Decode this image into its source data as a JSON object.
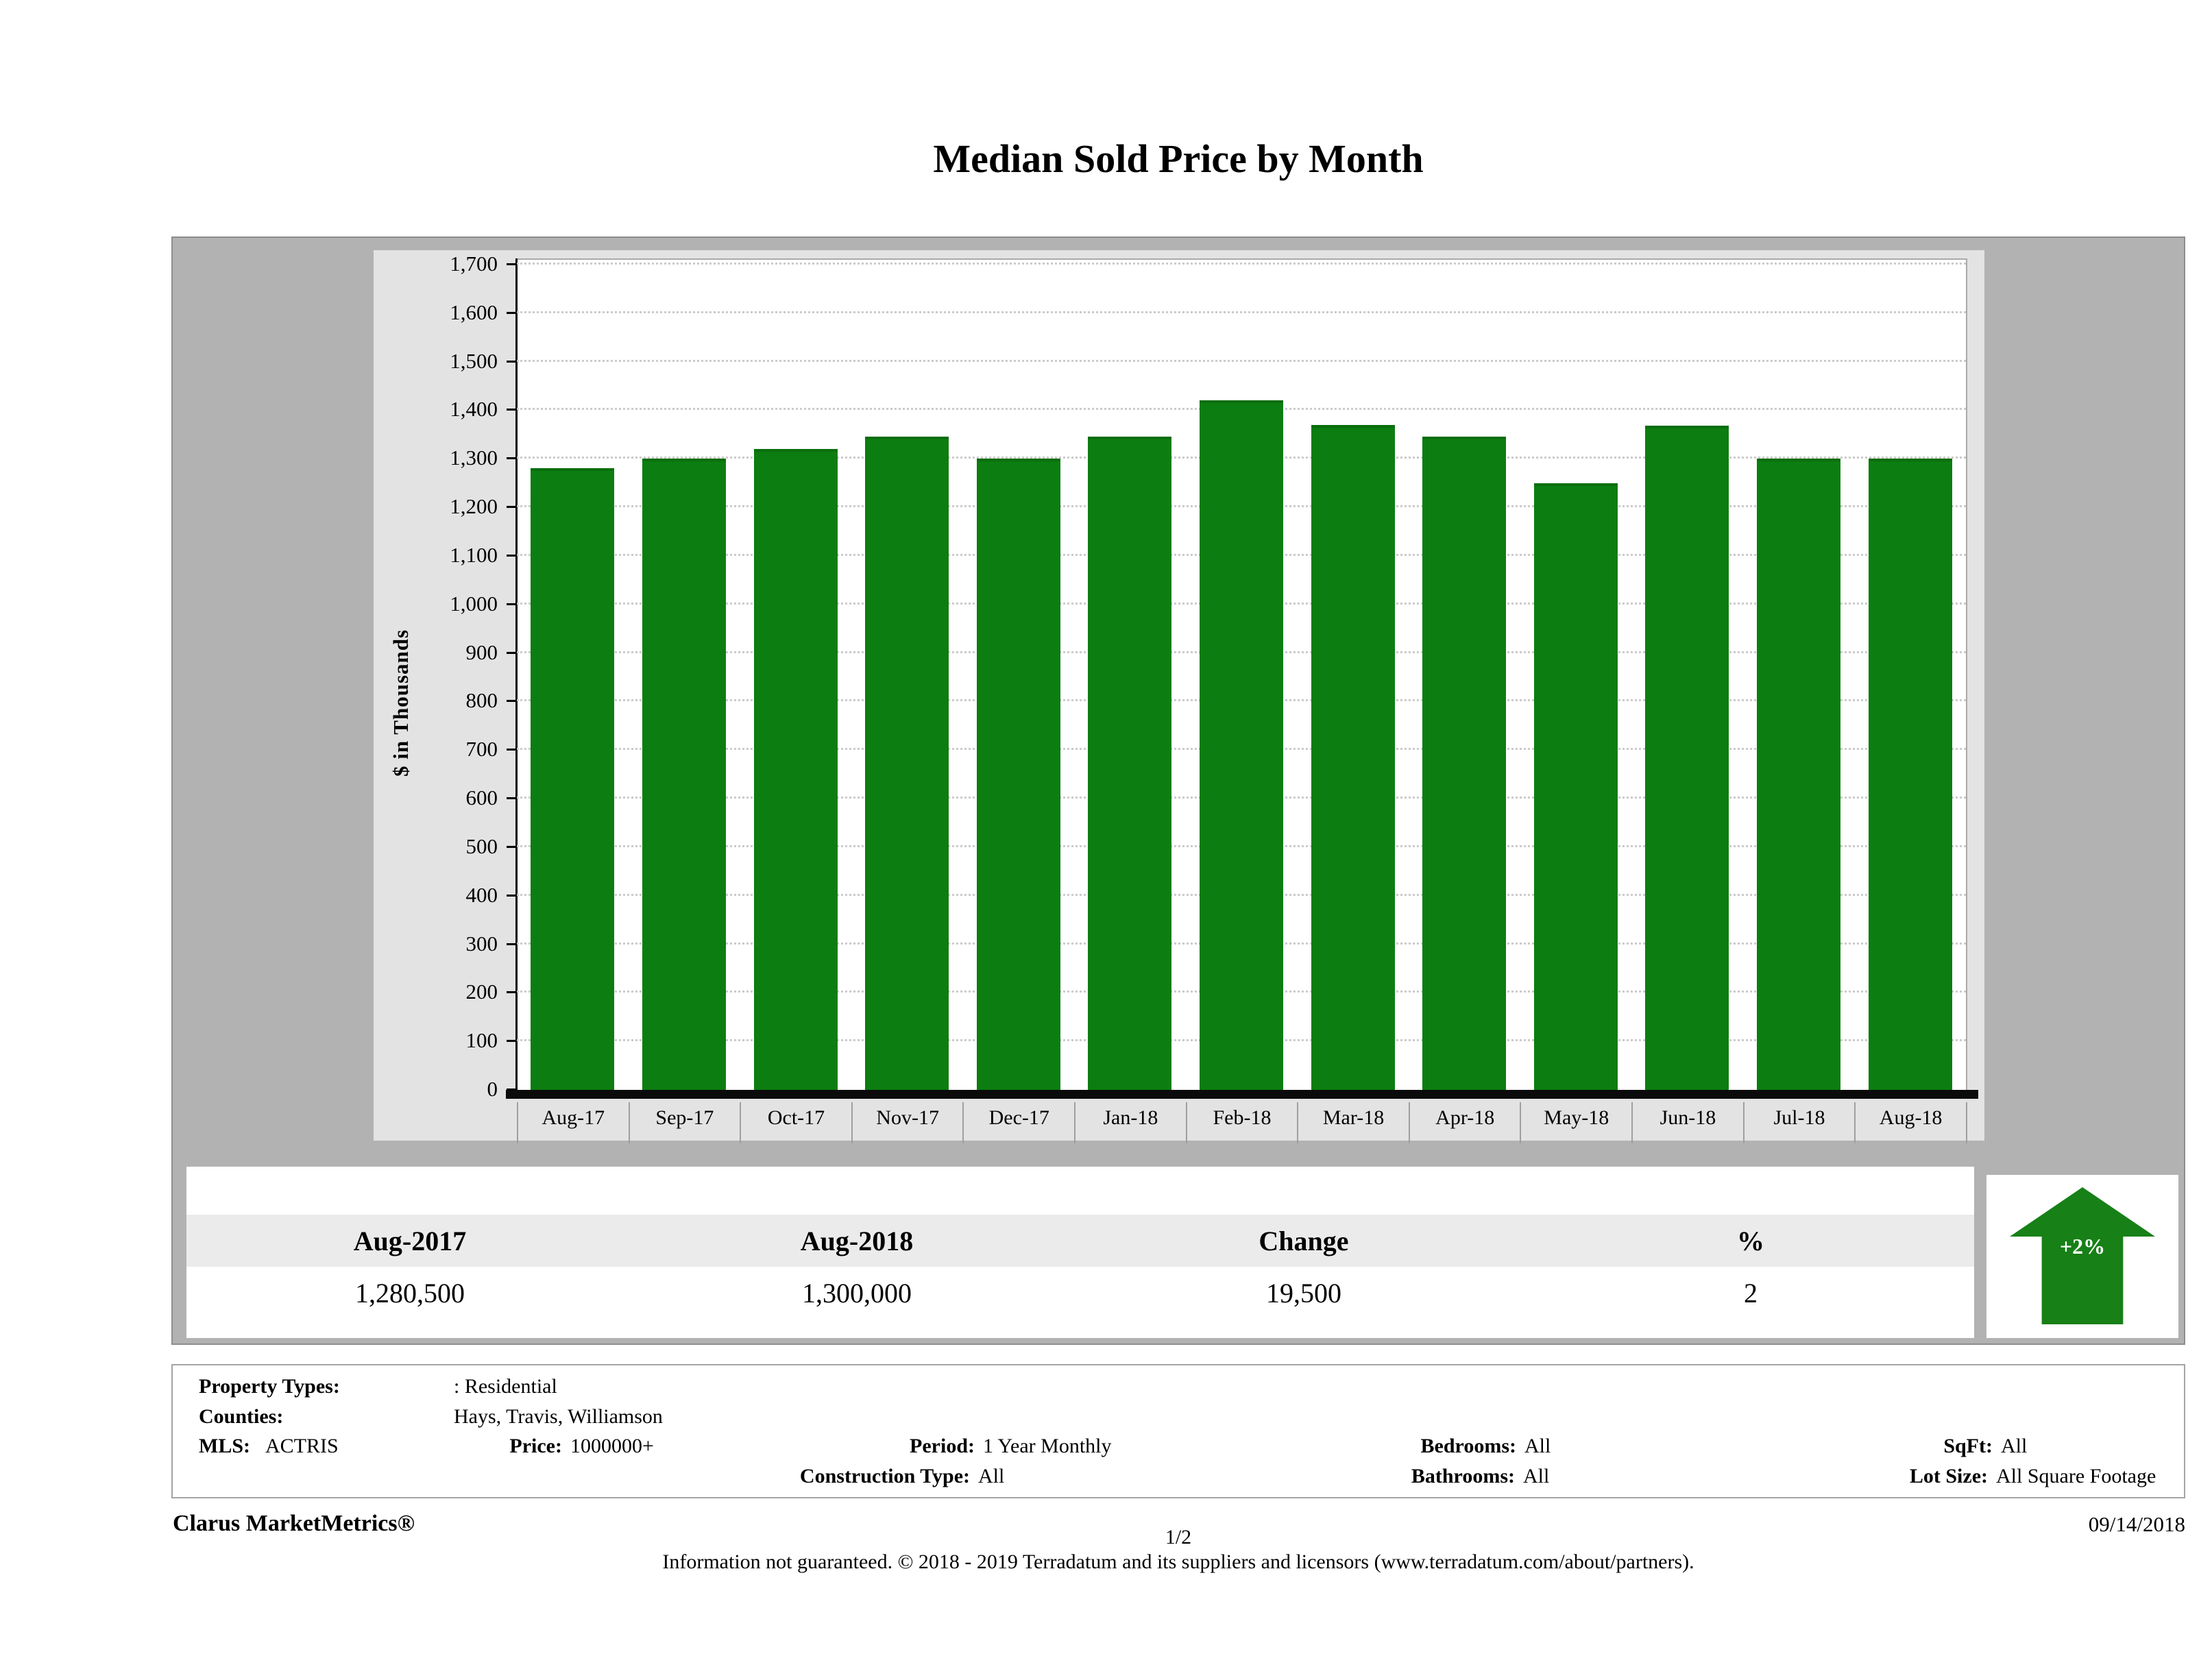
{
  "title": "Median Sold Price by Month",
  "chart_data": {
    "type": "bar",
    "title": "Median Sold Price by Month",
    "xlabel": "",
    "ylabel": "$ in Thousands",
    "categories": [
      "Aug-17",
      "Sep-17",
      "Oct-17",
      "Nov-17",
      "Dec-17",
      "Jan-18",
      "Feb-18",
      "Mar-18",
      "Apr-18",
      "May-18",
      "Jun-18",
      "Jul-18",
      "Aug-18"
    ],
    "values": [
      1280.5,
      1300,
      1320,
      1345,
      1300,
      1345,
      1420,
      1370,
      1345,
      1250,
      1368,
      1300,
      1300
    ],
    "ylim": [
      0,
      1700
    ],
    "ytick_interval": 100,
    "grid": true,
    "legend_position": "none",
    "bar_color": "#0c7d10"
  },
  "summary_table": {
    "headers": [
      "Aug-2017",
      "Aug-2018",
      "Change",
      "%"
    ],
    "values": [
      "1,280,500",
      "1,300,000",
      "19,500",
      "2"
    ]
  },
  "change_badge": {
    "label": "+2%",
    "direction": "up",
    "color": "#178017"
  },
  "filters": {
    "property_types_label": "Property Types:",
    "property_types_value": ": Residential",
    "counties_label": "Counties:",
    "counties_value": "Hays, Travis, Williamson",
    "mls_label": "MLS:",
    "mls_value": "ACTRIS",
    "price_label": "Price:",
    "price_value": "1000000+",
    "period_label": "Period:",
    "period_value": "1 Year Monthly",
    "construction_label": "Construction Type:",
    "construction_value": "All",
    "bedrooms_label": "Bedrooms:",
    "bedrooms_value": "All",
    "bathrooms_label": "Bathrooms:",
    "bathrooms_value": "All",
    "sqft_label": "SqFt:",
    "sqft_value": "All",
    "lot_size_label": "Lot Size:",
    "lot_size_value": "All Square Footage"
  },
  "footer": {
    "brand": "Clarus MarketMetrics®",
    "page": "1/2",
    "date": "09/14/2018",
    "disclaimer": "Information not guaranteed. © 2018 - 2019 Terradatum and its suppliers and licensors (www.terradatum.com/about/partners)."
  }
}
